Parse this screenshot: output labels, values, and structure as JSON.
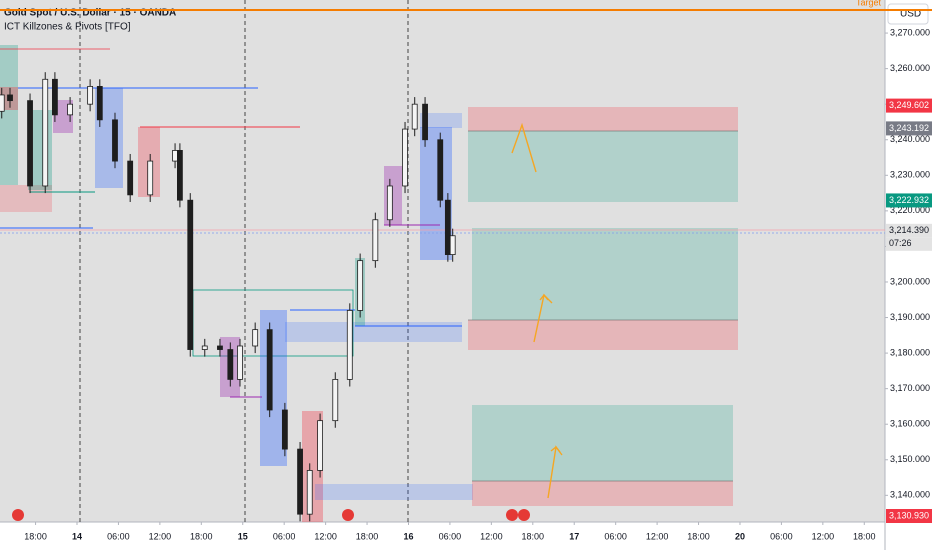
{
  "chart_data": {
    "type": "candlestick",
    "title": "Gold Spot / U.S. Dollar · 15 · OANDA",
    "subtitle": "ICT Killzones & Pivots [TFO]",
    "currency": "USD",
    "color": "#1e1e1e",
    "x": [
      -10.9,
      -9.7,
      -6.8,
      -4.6,
      -3.2,
      -1.0,
      1.9,
      3.3,
      5.5,
      7.7,
      10.6,
      14.2,
      14.9,
      16.4,
      18.5,
      20.7,
      22.2,
      23.6,
      25.8,
      27.9,
      30.1,
      32.3,
      33.7,
      35.2,
      37.4,
      39.5,
      41.0,
      43.2,
      45.3,
      47.5,
      48.9,
      50.4,
      52.6,
      53.7,
      54.4
    ],
    "open": [
      3248,
      3252.6,
      3251,
      3227,
      3257,
      3247,
      3250,
      3255,
      3245.6,
      3234,
      3224.5,
      3234,
      3237,
      3223,
      3181,
      3182,
      3181,
      3172.6,
      3182,
      3186.6,
      3164,
      3153,
      3134.7,
      3147,
      3161,
      3172.6,
      3192,
      3206,
      3217.5,
      3227,
      3243,
      3250,
      3240,
      3223,
      3207.7
    ],
    "high": [
      3254.6,
      3254.6,
      3253,
      3259,
      3259,
      3252,
      3257,
      3257,
      3247.6,
      3236,
      3236,
      3239,
      3239,
      3225,
      3184,
      3184,
      3183,
      3184,
      3188.6,
      3188.6,
      3166,
      3155,
      3149,
      3163,
      3174.6,
      3194,
      3208,
      3219.5,
      3229,
      3245,
      3252,
      3252,
      3242,
      3225,
      3215
    ],
    "low": [
      3246,
      3249,
      3225,
      3225,
      3245,
      3245,
      3248,
      3243.6,
      3232,
      3222.5,
      3222.5,
      3232,
      3221,
      3179,
      3179,
      3179,
      3170.6,
      3170.6,
      3180,
      3162,
      3151,
      3132.7,
      3132.7,
      3145,
      3159,
      3170.6,
      3190,
      3204,
      3215.5,
      3225,
      3241,
      3238,
      3221,
      3205.7,
      3205.7
    ],
    "close": [
      3252.6,
      3251,
      3227,
      3257,
      3247,
      3250,
      3255,
      3245.6,
      3234,
      3224.5,
      3234,
      3237,
      3223,
      3181,
      3182,
      3181,
      3172.6,
      3182,
      3186.6,
      3164,
      3153,
      3134.7,
      3147,
      3161,
      3172.6,
      3192,
      3206,
      3217.5,
      3227,
      3243,
      3250,
      3240,
      3223,
      3207.7,
      3213
    ],
    "xlim": [
      -11.15,
      117.0
    ],
    "xticks": [
      {
        "value": -6,
        "label": "18:00"
      },
      {
        "value": 0,
        "label": "14"
      },
      {
        "value": 6,
        "label": "06:00"
      },
      {
        "value": 12,
        "label": "12:00"
      },
      {
        "value": 18,
        "label": "18:00"
      },
      {
        "value": 24,
        "label": "15"
      },
      {
        "value": 30,
        "label": "06:00"
      },
      {
        "value": 36,
        "label": "12:00"
      },
      {
        "value": 42,
        "label": "18:00"
      },
      {
        "value": 48,
        "label": "16"
      },
      {
        "value": 54,
        "label": "06:00"
      },
      {
        "value": 60,
        "label": "12:00"
      },
      {
        "value": 66,
        "label": "18:00"
      },
      {
        "value": 72,
        "label": "17"
      },
      {
        "value": 78,
        "label": "06:00"
      },
      {
        "value": 84,
        "label": "12:00"
      },
      {
        "value": 90,
        "label": "18:00"
      },
      {
        "value": 96,
        "label": "20"
      },
      {
        "value": 102,
        "label": "06:00"
      },
      {
        "value": 108,
        "label": "12:00"
      },
      {
        "value": 114,
        "label": "18:00"
      }
    ],
    "ylim": [
      3132.5,
      3279.3
    ],
    "yticks": [
      {
        "value": 3140,
        "label": "3,140.000"
      },
      {
        "value": 3150,
        "label": "3,150.000"
      },
      {
        "value": 3160,
        "label": "3,160.000"
      },
      {
        "value": 3170,
        "label": "3,170.000"
      },
      {
        "value": 3180,
        "label": "3,180.000"
      },
      {
        "value": 3190,
        "label": "3,190.000"
      },
      {
        "value": 3200,
        "label": "3,200.000"
      },
      {
        "value": 3210,
        "label": "3,210.000"
      },
      {
        "value": 3220,
        "label": "3,220.000"
      },
      {
        "value": 3230,
        "label": "3,230.000"
      },
      {
        "value": 3240,
        "label": "3,240.000"
      },
      {
        "value": 3250,
        "label": "3,250.000"
      },
      {
        "value": 3260,
        "label": "3,260.000"
      },
      {
        "value": 3270,
        "label": "3,270.000"
      }
    ],
    "target_line": {
      "value": 3276.5,
      "label": "Target",
      "color": "#f57c00"
    },
    "markers": [
      {
        "value": 3249.602,
        "label": "3,249.602",
        "color": "#f23645"
      },
      {
        "value": 3243.192,
        "label": "3,243.192",
        "color": "#787b86"
      },
      {
        "value": 3222.932,
        "label": "3,222.932",
        "color": "#089981"
      },
      {
        "value": 3214.39,
        "label": "3,214.390",
        "color": "#e3e3e3"
      },
      {
        "value": 3130.93,
        "label": "3,130.930",
        "color": "#f23645"
      }
    ],
    "countdown": "07:26"
  }
}
